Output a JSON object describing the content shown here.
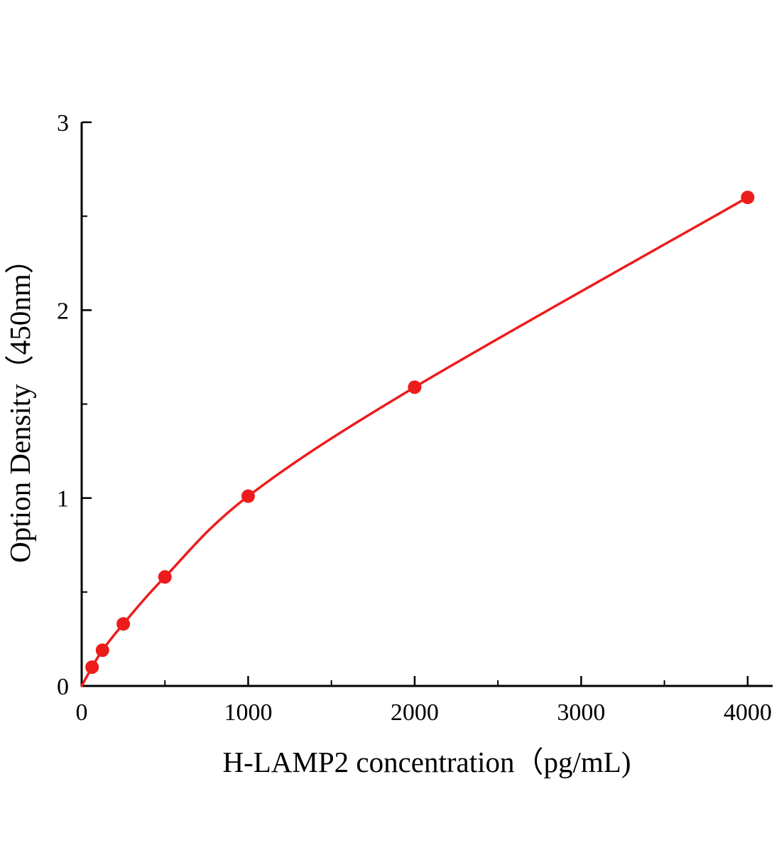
{
  "chart_data": {
    "type": "scatter",
    "title": "",
    "xlabel": "H-LAMP2 concentration（pg/mL)",
    "ylabel": "Option Density（450nm）",
    "x": [
      62.5,
      125,
      250,
      500,
      1000,
      2000,
      4000
    ],
    "y": [
      0.1,
      0.19,
      0.33,
      0.58,
      1.01,
      1.59,
      2.6
    ],
    "curve_start": {
      "x": 0,
      "y": 0
    },
    "xlim": [
      0,
      4150
    ],
    "ylim": [
      0,
      3
    ],
    "x_major_ticks": [
      0,
      1000,
      2000,
      3000,
      4000
    ],
    "x_major_tick_labels": [
      "0",
      "1000",
      "2000",
      "3000",
      "4000"
    ],
    "x_minor_ticks": [
      500,
      1500,
      2500,
      3500
    ],
    "y_major_ticks": [
      0,
      1,
      2,
      3
    ],
    "y_major_tick_labels": [
      "0",
      "1",
      "2",
      "3"
    ],
    "y_minor_ticks": [
      0.5,
      1.5,
      2.5
    ],
    "line_color": "#ed1c1c",
    "marker_color": "#ed1c1c",
    "axis_color": "#000000",
    "background_color": "#ffffff",
    "grid": false,
    "legend": null
  }
}
